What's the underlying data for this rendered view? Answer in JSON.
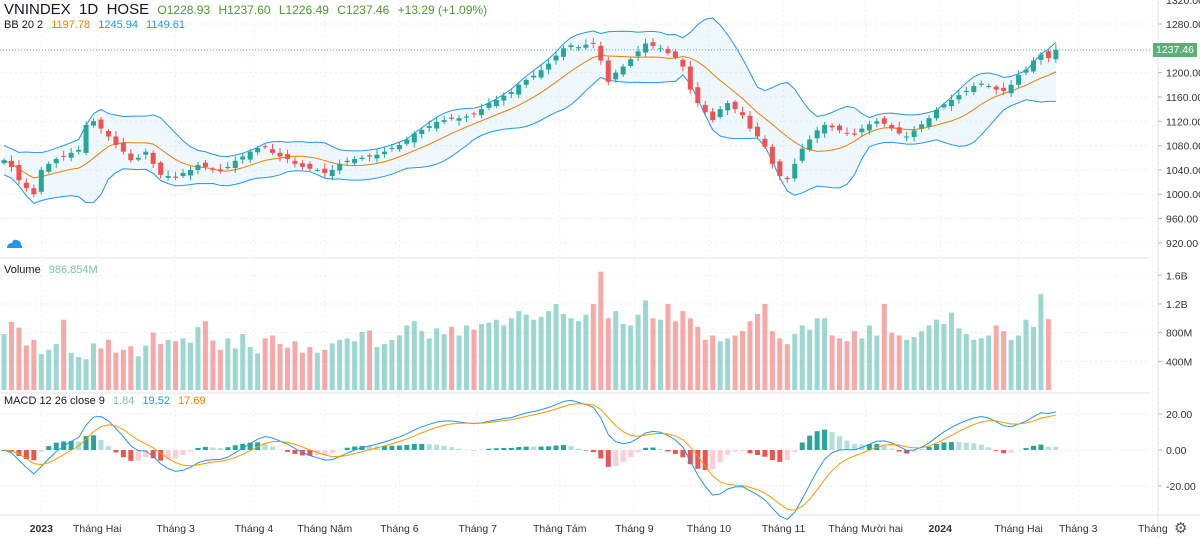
{
  "header": {
    "symbol": "VNINDEX",
    "interval": "1D",
    "exchange": "HOSE",
    "open": "O1228.93",
    "high": "H1237.60",
    "low": "L1226.49",
    "close": "C1237.46",
    "change": "+13.29 (+1.09%)"
  },
  "bb": {
    "label": "BB 20 2",
    "basis": "1197.78",
    "upper": "1245.94",
    "lower": "1149.61"
  },
  "volume": {
    "label": "Volume",
    "value": "986.854M"
  },
  "macd": {
    "label": "MACD 12 26 close 9",
    "hist": "1.84",
    "macd": "19.52",
    "signal": "17.69"
  },
  "last_price": "1237.46",
  "colors": {
    "up": "#26a69a",
    "down": "#ef5350",
    "bb_basis": "#f57c00",
    "bb_band": "#2196f3",
    "signal": "#ff9800",
    "macd": "#2196f3"
  },
  "chart_data": {
    "type": "candlestick",
    "price_axis": {
      "ticks": [
        "1280.00",
        "1200.00",
        "1160.00",
        "1120.00",
        "1080.00",
        "1040.00",
        "1000.00",
        "960.00",
        "920.00"
      ],
      "values": [
        1280,
        1200,
        1160,
        1120,
        1080,
        1040,
        1000,
        960,
        920
      ]
    },
    "volume_axis": {
      "ticks": [
        "1.6B",
        "1.2B",
        "800M",
        "400M"
      ],
      "values": [
        1600,
        1200,
        800,
        400
      ]
    },
    "macd_axis": {
      "ticks": [
        "20.00",
        "0.00",
        "-20.00"
      ],
      "values": [
        20,
        0,
        -20
      ]
    },
    "x_labels": [
      "2023",
      "Tháng Hai",
      "Tháng 3",
      "Tháng 4",
      "Tháng Năm",
      "Tháng 6",
      "Tháng 7",
      "Tháng Tám",
      "Tháng 9",
      "Tháng 10",
      "Tháng 11",
      "Tháng Mười hai",
      "2024",
      "Tháng Hai",
      "Tháng 3",
      "Tháng"
    ],
    "x_label_bar_index": [
      5,
      12.5,
      23,
      33.5,
      43,
      53,
      63.5,
      74.5,
      84.5,
      94.5,
      104.5,
      115.5,
      125.5,
      136,
      144,
      154
    ],
    "closes": [
      1056,
      1045,
      1023,
      1010,
      1000,
      1040,
      1050,
      1058,
      1062,
      1068,
      1073,
      1114,
      1120,
      1108,
      1095,
      1081,
      1070,
      1056,
      1060,
      1070,
      1050,
      1032,
      1030,
      1027,
      1035,
      1040,
      1048,
      1045,
      1040,
      1038,
      1045,
      1055,
      1062,
      1070,
      1076,
      1078,
      1068,
      1062,
      1058,
      1050,
      1045,
      1042,
      1040,
      1035,
      1040,
      1050,
      1055,
      1058,
      1060,
      1062,
      1065,
      1070,
      1076,
      1081,
      1090,
      1100,
      1106,
      1112,
      1119,
      1122,
      1124,
      1125,
      1128,
      1132,
      1140,
      1150,
      1155,
      1162,
      1168,
      1180,
      1188,
      1195,
      1204,
      1215,
      1228,
      1240,
      1245,
      1242,
      1246,
      1248,
      1220,
      1185,
      1200,
      1210,
      1222,
      1235,
      1248,
      1244,
      1240,
      1232,
      1225,
      1210,
      1172,
      1150,
      1135,
      1122,
      1140,
      1150,
      1140,
      1130,
      1108,
      1095,
      1078,
      1050,
      1030,
      1025,
      1050,
      1075,
      1090,
      1105,
      1114,
      1110,
      1105,
      1100,
      1098,
      1108,
      1115,
      1120,
      1116,
      1108,
      1100,
      1095,
      1105,
      1115,
      1125,
      1139,
      1148,
      1155,
      1163,
      1170,
      1178,
      1182,
      1178,
      1172,
      1170,
      1180,
      1196,
      1205,
      1220,
      1230,
      1224,
      1237.46
    ],
    "volumes_m": [
      780,
      950,
      870,
      620,
      700,
      500,
      560,
      640,
      980,
      520,
      460,
      430,
      650,
      580,
      700,
      520,
      560,
      610,
      470,
      620,
      800,
      640,
      700,
      680,
      720,
      660,
      880,
      960,
      690,
      560,
      720,
      580,
      780,
      600,
      510,
      720,
      760,
      640,
      590,
      680,
      520,
      600,
      520,
      560,
      650,
      700,
      720,
      680,
      810,
      830,
      600,
      640,
      700,
      760,
      900,
      960,
      820,
      720,
      860,
      780,
      880,
      760,
      900,
      840,
      920,
      940,
      980,
      900,
      1000,
      1100,
      1050,
      980,
      1020,
      1100,
      1200,
      1060,
      1000,
      960,
      1050,
      1200,
      1650,
      1000,
      1100,
      920,
      900,
      1050,
      1250,
      1000,
      980,
      1200,
      960,
      1100,
      1000,
      880,
      700,
      760,
      680,
      720,
      760,
      820,
      960,
      1060,
      1200,
      820,
      720,
      640,
      780,
      900,
      840,
      1000,
      1000,
      760,
      720,
      680,
      820,
      720,
      900,
      760,
      1200,
      800,
      760,
      700,
      740,
      820,
      900,
      980,
      920,
      1080,
      860,
      780,
      700,
      720,
      760,
      900,
      820,
      700,
      760,
      980,
      880,
      1340,
      987
    ],
    "bb_period": 20,
    "bb_mult": 2,
    "macd_fast": 12,
    "macd_slow": 26,
    "macd_signal": 9
  }
}
